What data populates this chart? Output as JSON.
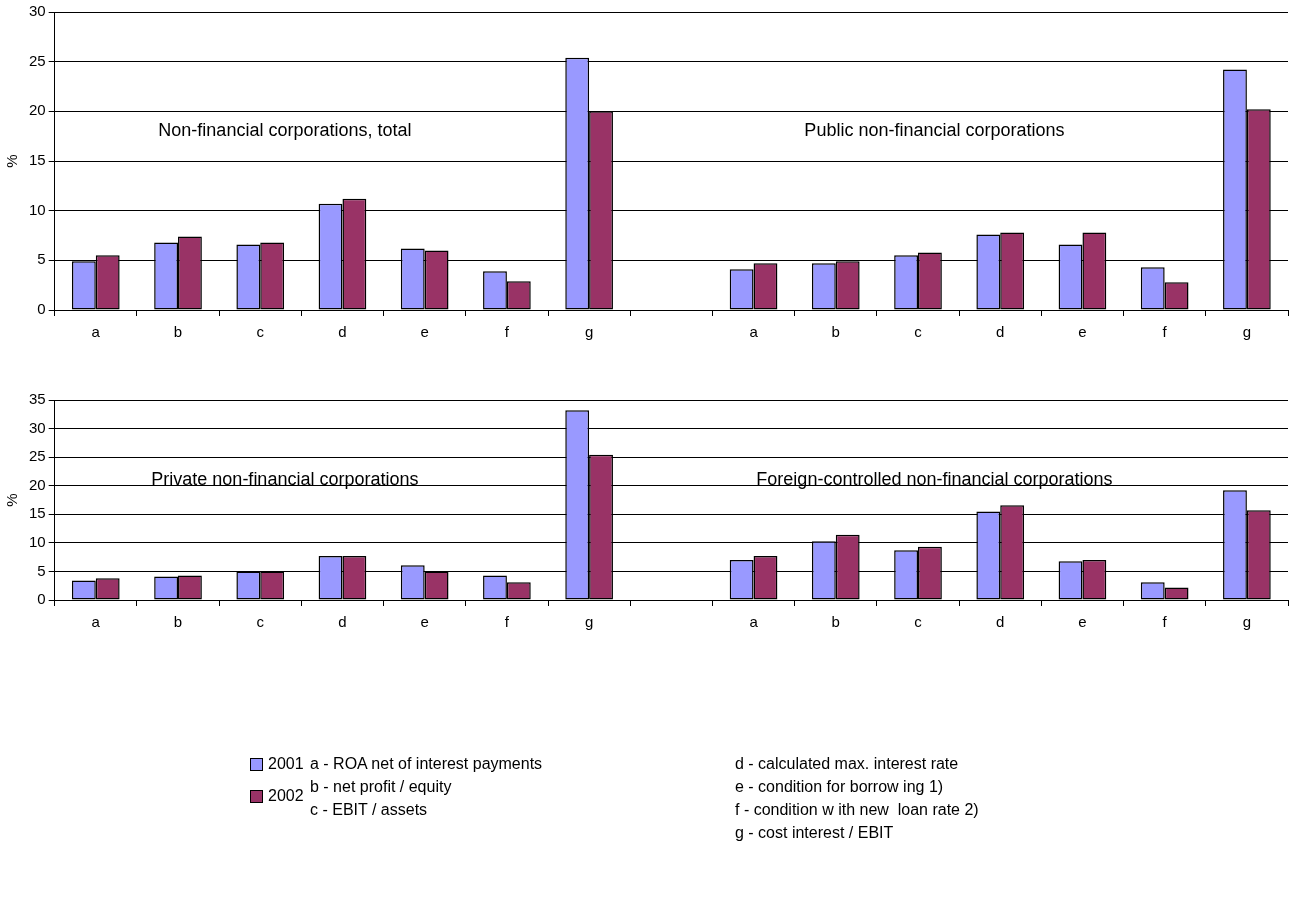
{
  "chart_data": [
    {
      "type": "bar",
      "ylabel": "%",
      "categories": [
        "a",
        "b",
        "c",
        "d",
        "e",
        "f",
        "g",
        null,
        "a",
        "b",
        "c",
        "d",
        "e",
        "f",
        "g"
      ],
      "series": [
        {
          "color": "#9999ff",
          "values": [
            4.9,
            6.8,
            6.6,
            10.7,
            6.2,
            3.9,
            25.4,
            null,
            4.1,
            4.7,
            5.5,
            7.6,
            6.6,
            4.3,
            24.2
          ]
        },
        {
          "color": "#993366",
          "values": [
            5.5,
            7.4,
            6.8,
            11.2,
            6.0,
            2.9,
            20.0,
            null,
            4.7,
            4.9,
            5.8,
            7.8,
            7.8,
            2.8,
            20.2
          ]
        }
      ],
      "ylim": [
        0,
        30
      ],
      "yticks": [
        0,
        5,
        10,
        15,
        20,
        25,
        30
      ],
      "grid": "y",
      "annotations": [
        "Non-financial corporations, total",
        "Public non-financial corporations"
      ]
    },
    {
      "type": "bar",
      "ylabel": "%",
      "categories": [
        "a",
        "b",
        "c",
        "d",
        "e",
        "f",
        "g",
        null,
        "a",
        "b",
        "c",
        "d",
        "e",
        "f",
        "g"
      ],
      "series": [
        {
          "name": "2001",
          "color": "#9999ff",
          "values": [
            3.4,
            4.1,
            5.0,
            7.7,
            6.1,
            4.3,
            33.2,
            null,
            7.0,
            10.3,
            8.7,
            15.5,
            6.8,
            3.1,
            19.2
          ]
        },
        {
          "name": "2002",
          "color": "#993366",
          "values": [
            3.8,
            4.3,
            5.0,
            7.7,
            5.0,
            3.1,
            25.4,
            null,
            7.7,
            11.4,
            9.3,
            16.6,
            7.0,
            2.2,
            15.7
          ]
        }
      ],
      "ylim": [
        0,
        35
      ],
      "yticks": [
        0,
        5,
        10,
        15,
        20,
        25,
        30,
        35
      ],
      "grid": "y",
      "legend": "bottom",
      "annotations": [
        "Private non-financial corporations",
        "Foreign-controlled non-financial corporations",
        "a - ROA net of interest payments",
        "b - net profit / equity",
        "c - EBIT / assets",
        "d - calculated max. interest rate",
        "e - condition for borrow ing 1)",
        "f - condition w ith new  loan rate 2)",
        "g - cost interest / EBIT"
      ]
    }
  ]
}
